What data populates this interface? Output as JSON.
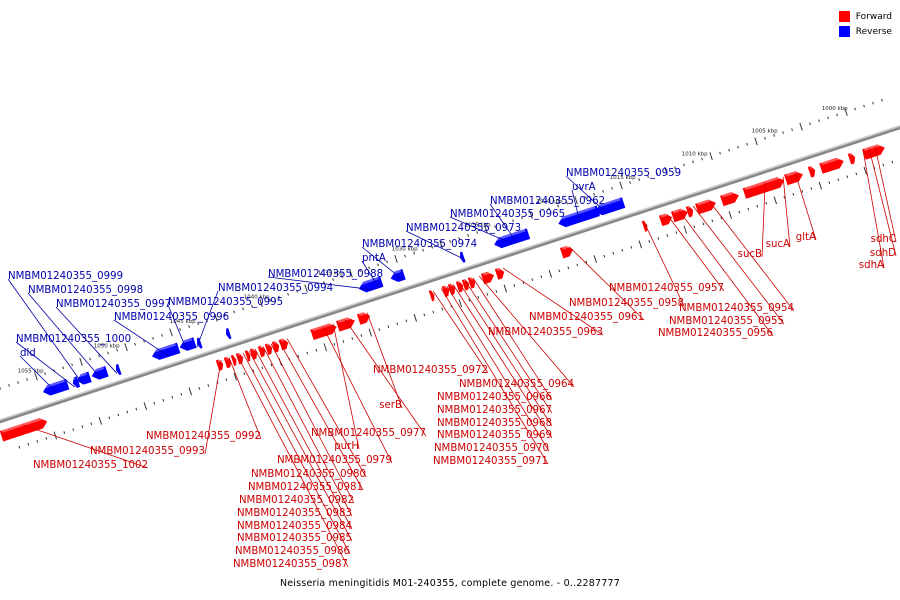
{
  "legend": {
    "forward_label": "Forward",
    "reverse_label": "Reverse",
    "forward_color": "#ff0000",
    "reverse_color": "#0000ff"
  },
  "colors": {
    "forward": "#ff0000",
    "reverse": "#0000ff",
    "backbone": "#888888",
    "label_forward": "#cc0000",
    "label_reverse": "#0000aa"
  },
  "caption": "Neisseria meningitidis M01-240355, complete genome. - 0..2287777",
  "scale_labels": [
    "1000 kbp",
    "1005 kbp",
    "1010 kbp",
    "1015 kbp",
    "1020 kbp",
    "1025 kbp",
    "1030 kbp",
    "1035 kbp",
    "1040 kbp",
    "1045 kbp",
    "1050 kbp",
    "1055 kbp"
  ],
  "reverse_labels": [
    "NMBM01240355_0959",
    "uvrA",
    "NMBM01240355_0962",
    "NMBM01240355_0965",
    "NMBM01240355_0973",
    "NMBM01240355_0974",
    "pntA",
    "NMBM01240355_0988",
    "NMBM01240355_0994",
    "NMBM01240355_0995",
    "NMBM01240355_0996",
    "NMBM01240355_0997",
    "NMBM01240355_0998",
    "NMBM01240355_0999",
    "NMBM01240355_1000",
    "dld"
  ],
  "forward_labels": [
    "sdhC",
    "sdhD",
    "sdhA",
    "gltA",
    "sucA",
    "sucB",
    "NMBM01240355_0954",
    "NMBM01240355_0955",
    "NMBM01240355_0956",
    "NMBM01240355_0957",
    "NMBM01240355_0958",
    "NMBM01240355_0961",
    "NMBM01240355_0963",
    "NMBM01240355_0964",
    "NMBM01240355_0966",
    "NMBM01240355_0967",
    "NMBM01240355_0968",
    "NMBM01240355_0969",
    "NMBM01240355_0970",
    "NMBM01240355_0971",
    "NMBM01240355_0972",
    "serB",
    "NMBM01240355_0977",
    "purH",
    "NMBM01240355_0979",
    "NMBM01240355_0980",
    "NMBM01240355_0981",
    "NMBM01240355_0982",
    "NMBM01240355_0983",
    "NMBM01240355_0984",
    "NMBM01240355_0985",
    "NMBM01240355_0986",
    "NMBM01240355_0987",
    "NMBM01240355_0992",
    "NMBM01240355_0993",
    "NMBM01240355_1002"
  ]
}
